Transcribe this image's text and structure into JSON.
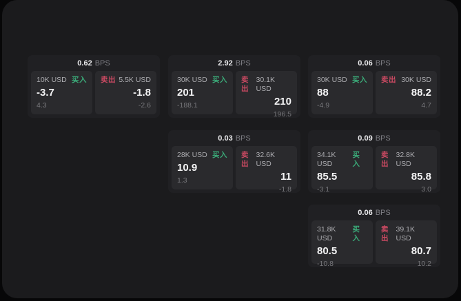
{
  "labels": {
    "buy": "买入",
    "sell": "卖出",
    "bps_unit": "BPS"
  },
  "colors": {
    "buy": "#3bab79",
    "sell": "#cd4a63",
    "panel": "#2a2a2d"
  },
  "cards": [
    {
      "bps": "0.62",
      "buy": {
        "size": "10K USD",
        "value": "-3.7",
        "sub": "4.3"
      },
      "sell": {
        "size": "5.5K USD",
        "value": "-1.8",
        "sub": "-2.6"
      }
    },
    {
      "bps": "2.92",
      "buy": {
        "size": "30K USD",
        "value": "201",
        "sub": "-188.1"
      },
      "sell": {
        "size": "30.1K USD",
        "value": "210",
        "sub": "196.5"
      }
    },
    {
      "bps": "0.06",
      "buy": {
        "size": "30K USD",
        "value": "88",
        "sub": "-4.9"
      },
      "sell": {
        "size": "30K USD",
        "value": "88.2",
        "sub": "4.7"
      }
    },
    {
      "bps": "0.03",
      "buy": {
        "size": "28K USD",
        "value": "10.9",
        "sub": "1.3"
      },
      "sell": {
        "size": "32.6K USD",
        "value": "11",
        "sub": "-1.8"
      }
    },
    {
      "bps": "0.09",
      "buy": {
        "size": "34.1K USD",
        "value": "85.5",
        "sub": "-3.1"
      },
      "sell": {
        "size": "32.8K USD",
        "value": "85.8",
        "sub": "3.0"
      }
    },
    {
      "bps": "0.06",
      "buy": {
        "size": "31.8K USD",
        "value": "80.5",
        "sub": "-10.8"
      },
      "sell": {
        "size": "39.1K USD",
        "value": "80.7",
        "sub": "10.2"
      }
    }
  ]
}
